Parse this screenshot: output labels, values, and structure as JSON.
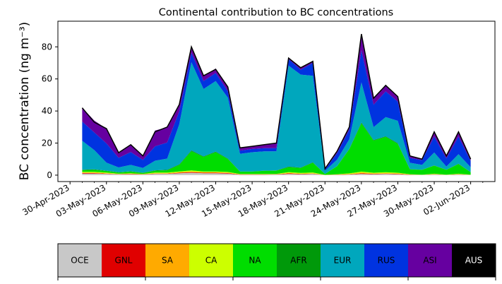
{
  "chart_data": {
    "type": "area",
    "title": "Continental contribution to BC concentrations",
    "ylabel": "BC concentration (ng m⁻³)",
    "xlabel": "",
    "ylim": [
      -4,
      96
    ],
    "xlim": [
      "2023-04-29",
      "2023-06-04"
    ],
    "y_ticks": [
      0,
      20,
      40,
      60,
      80
    ],
    "x_ticks": [
      "2023-04-30",
      "2023-05-03",
      "2023-05-06",
      "2023-05-09",
      "2023-05-12",
      "2023-05-15",
      "2023-05-18",
      "2023-05-21",
      "2023-05-24",
      "2023-05-27",
      "2023-05-30",
      "2023-06-02"
    ],
    "x_tick_labels": [
      "30-Apr-2023",
      "03-May-2023",
      "06-May-2023",
      "09-May-2023",
      "12-May-2023",
      "15-May-2023",
      "18-May-2023",
      "21-May-2023",
      "24-May-2023",
      "27-May-2023",
      "30-May-2023",
      "02-Jun-2023"
    ],
    "x": [
      "2023-05-01",
      "2023-05-02",
      "2023-05-03",
      "2023-05-04",
      "2023-05-05",
      "2023-05-06",
      "2023-05-07",
      "2023-05-08",
      "2023-05-09",
      "2023-05-10",
      "2023-05-11",
      "2023-05-12",
      "2023-05-13",
      "2023-05-14",
      "2023-05-15",
      "2023-05-16",
      "2023-05-17",
      "2023-05-18",
      "2023-05-19",
      "2023-05-20",
      "2023-05-21",
      "2023-05-22",
      "2023-05-23",
      "2023-05-24",
      "2023-05-25",
      "2023-05-26",
      "2023-05-27",
      "2023-05-28",
      "2023-05-29",
      "2023-05-30",
      "2023-05-31",
      "2023-06-01",
      "2023-06-02"
    ],
    "total": [
      42,
      33,
      29,
      14,
      19,
      12,
      27,
      30,
      44,
      80,
      62,
      66,
      55,
      17,
      18,
      19,
      20,
      73,
      67,
      71,
      4,
      15,
      30,
      88,
      48,
      56,
      49,
      12,
      10,
      27,
      12,
      27,
      10
    ],
    "series": [
      {
        "name": "OCE",
        "color": "#c8c8c8",
        "values": [
          1.0,
          1.0,
          0.8,
          0.5,
          0.5,
          0.4,
          0.8,
          0.8,
          1.2,
          1.5,
          1.2,
          1.2,
          1.0,
          0.3,
          0.3,
          0.3,
          0.4,
          0.8,
          0.6,
          0.8,
          0.1,
          0.2,
          0.4,
          0.8,
          0.6,
          0.8,
          0.6,
          0.2,
          0.2,
          0.4,
          0.2,
          0.4,
          0.2
        ]
      },
      {
        "name": "GNL",
        "color": "#e00000",
        "values": [
          0.3,
          0.3,
          0.2,
          0.1,
          0.2,
          0.1,
          0.2,
          0.2,
          0.3,
          0.4,
          0.3,
          0.3,
          0.3,
          0.1,
          0.1,
          0.1,
          0.1,
          0.3,
          0.2,
          0.2,
          0.0,
          0.1,
          0.1,
          0.3,
          0.2,
          0.2,
          0.2,
          0.1,
          0.0,
          0.1,
          0.0,
          0.1,
          0.0
        ]
      },
      {
        "name": "SA",
        "color": "#ffaa00",
        "values": [
          0.3,
          0.3,
          0.2,
          0.1,
          0.2,
          0.1,
          0.2,
          0.2,
          0.3,
          0.4,
          0.3,
          0.3,
          0.3,
          0.1,
          0.1,
          0.1,
          0.1,
          0.3,
          0.2,
          0.2,
          0.0,
          0.1,
          0.2,
          0.5,
          0.3,
          0.3,
          0.3,
          0.1,
          0.0,
          0.1,
          0.0,
          0.1,
          0.0
        ]
      },
      {
        "name": "CA",
        "color": "#ccff00",
        "values": [
          0.5,
          0.5,
          0.4,
          0.2,
          0.3,
          0.2,
          0.4,
          0.4,
          0.5,
          0.6,
          0.5,
          0.5,
          0.4,
          0.2,
          0.2,
          0.2,
          0.2,
          0.5,
          0.4,
          0.5,
          0.1,
          0.2,
          0.4,
          0.6,
          0.4,
          0.5,
          0.4,
          0.2,
          0.1,
          0.3,
          0.1,
          0.3,
          0.1
        ]
      },
      {
        "name": "NA",
        "color": "#00dd00",
        "values": [
          1.0,
          1.2,
          1.0,
          0.8,
          1.0,
          0.6,
          1.2,
          1.4,
          4.0,
          12.0,
          9.0,
          12.0,
          8.0,
          1.5,
          1.5,
          2.0,
          2.0,
          3.0,
          3.0,
          6.0,
          0.5,
          5.0,
          15.0,
          30.0,
          20.0,
          22.0,
          18.0,
          3.0,
          3.0,
          5.0,
          3.0,
          6.0,
          1.5
        ]
      },
      {
        "name": "AFR",
        "color": "#00990a",
        "values": [
          0.3,
          0.3,
          0.2,
          0.1,
          0.2,
          0.1,
          0.2,
          0.3,
          0.4,
          0.5,
          0.4,
          0.4,
          0.3,
          0.1,
          0.1,
          0.1,
          0.1,
          0.4,
          0.3,
          0.3,
          0.0,
          0.1,
          0.3,
          0.6,
          0.4,
          0.4,
          0.4,
          0.1,
          0.1,
          0.2,
          0.1,
          0.2,
          0.1
        ]
      },
      {
        "name": "EUR",
        "color": "#00a7bd",
        "values": [
          18.0,
          12.0,
          5.0,
          3.0,
          4.0,
          3.0,
          6.0,
          7.0,
          25.0,
          55.0,
          42.0,
          44.0,
          38.0,
          11.0,
          12.0,
          12.0,
          12.0,
          63.0,
          58.0,
          54.0,
          2.0,
          4.0,
          6.0,
          25.0,
          8.0,
          12.0,
          14.0,
          4.0,
          3.0,
          8.0,
          2.0,
          6.0,
          3.0
        ]
      },
      {
        "name": "RUS",
        "color": "#0033e0",
        "values": [
          12.0,
          11.0,
          12.0,
          6.0,
          8.0,
          5.0,
          9.0,
          10.0,
          8.0,
          6.0,
          5.0,
          5.0,
          4.0,
          2.0,
          2.0,
          2.0,
          2.0,
          4.0,
          3.0,
          8.0,
          0.8,
          4.0,
          6.0,
          20.0,
          14.0,
          16.0,
          12.0,
          3.0,
          3.0,
          10.0,
          5.0,
          11.0,
          4.0
        ]
      },
      {
        "name": "ASI",
        "color": "#6600a0",
        "values": [
          8.6,
          7.4,
          9.2,
          3.2,
          4.6,
          2.5,
          9.8,
          9.5,
          4.3,
          3.6,
          3.0,
          2.8,
          2.4,
          1.6,
          1.7,
          2.2,
          3.0,
          0.7,
          1.1,
          0.8,
          0.5,
          1.2,
          1.6,
          9.2,
          3.9,
          3.6,
          2.9,
          1.2,
          0.5,
          2.8,
          1.5,
          2.8,
          1.0
        ]
      },
      {
        "name": "AUS",
        "color": "#000000",
        "values": [
          0.0,
          0.0,
          0.0,
          0.0,
          0.0,
          0.0,
          0.0,
          0.0,
          0.0,
          0.0,
          0.0,
          0.0,
          0.0,
          0.0,
          0.0,
          0.0,
          0.0,
          0.0,
          0.0,
          0.0,
          0.0,
          0.0,
          0.0,
          0.0,
          0.0,
          0.0,
          0.0,
          0.0,
          0.0,
          0.0,
          0.0,
          0.0,
          0.0
        ]
      }
    ],
    "total_line_color": "#000000",
    "grid": false,
    "legend": {
      "placement": "bottom colorbar",
      "labels": [
        "OCE",
        "GNL",
        "SA",
        "CA",
        "NA",
        "AFR",
        "EUR",
        "RUS",
        "ASI",
        "AUS"
      ],
      "colors": [
        "#c8c8c8",
        "#e00000",
        "#ffaa00",
        "#ccff00",
        "#00dd00",
        "#00990a",
        "#00a7bd",
        "#0033e0",
        "#6600a0",
        "#000000"
      ],
      "text_colors": [
        "#000000",
        "#000000",
        "#000000",
        "#000000",
        "#000000",
        "#000000",
        "#000000",
        "#000000",
        "#000000",
        "#ffffff"
      ]
    }
  }
}
